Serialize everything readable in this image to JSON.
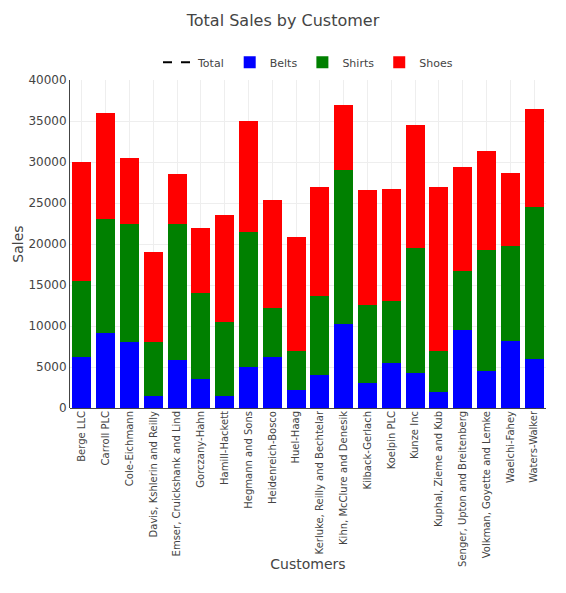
{
  "chart_data": {
    "type": "bar",
    "title": "Total Sales by Customer",
    "xlabel": "Customers",
    "ylabel": "Sales",
    "stacked": true,
    "grid": true,
    "legend": "upper center",
    "categories": [
      "Berge LLC",
      "Carroll PLC",
      "Cole-Eichmann",
      "Davis, Kshlerin and Reilly",
      "Emser, Cruickshank and Lind",
      "Gorczany-Hahn",
      "Hamill-Hackett",
      "Hegmann and Sons",
      "Heidenreich-Bosco",
      "Huel-Haag",
      "Kerluke, Reilly and Bechtelar",
      "Kihn, McClure and Denesik",
      "Kilback-Gerlach",
      "Koelpin PLC",
      "Kunze Inc",
      "Kuphal, Zieme and Kub",
      "Senger, Upton and Breitenberg",
      "Volkman, Goyette and Lemke",
      "Waelchi-Fahey",
      "Waters-Walker"
    ],
    "series": [
      {
        "name": "Total",
        "type": "line",
        "line_style": "dashed",
        "color": "#000000",
        "values": [
          null,
          null,
          null,
          null,
          null,
          null,
          null,
          null,
          null,
          null,
          null,
          null,
          null,
          null,
          null,
          null,
          null,
          null,
          null,
          null
        ]
      },
      {
        "name": "Belts",
        "type": "bar",
        "color": "#0000ff",
        "values": [
          6200,
          9200,
          8000,
          1500,
          5800,
          3500,
          1500,
          5000,
          6200,
          2200,
          4000,
          10300,
          3000,
          5500,
          4300,
          2000,
          9500,
          4500,
          8200,
          6000
        ]
      },
      {
        "name": "Shirts",
        "type": "bar",
        "color": "#008000",
        "values": [
          9300,
          13800,
          14500,
          6500,
          16700,
          10500,
          9000,
          16500,
          6000,
          4700,
          9700,
          18700,
          9600,
          7500,
          15200,
          5000,
          7200,
          14800,
          11500,
          18500
        ]
      },
      {
        "name": "Shoes",
        "type": "bar",
        "color": "#ff0000",
        "values": [
          14500,
          13000,
          8000,
          11000,
          6000,
          8000,
          13000,
          13500,
          13200,
          14000,
          13200,
          8000,
          14000,
          13700,
          15000,
          20000,
          12700,
          12000,
          9000,
          12000
        ]
      }
    ],
    "ylim": [
      0,
      40000
    ],
    "yticks": [
      0,
      5000,
      10000,
      15000,
      20000,
      25000,
      30000,
      35000,
      40000
    ]
  }
}
